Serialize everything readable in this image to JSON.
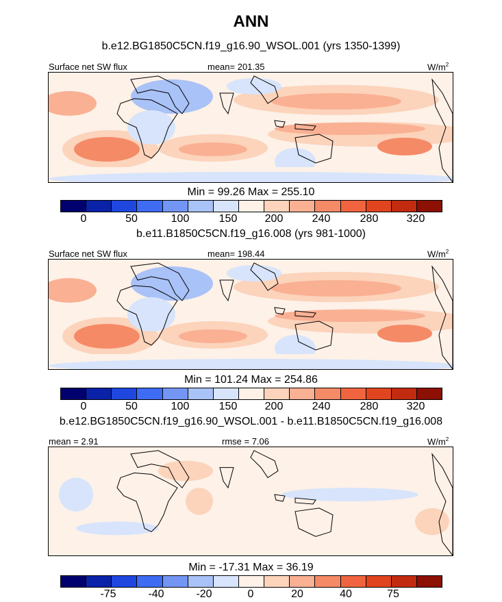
{
  "title": "ANN",
  "panels": [
    {
      "subtitle": "b.e12.BG1850C5CN.f19_g16.90_WSOL.001 (yrs 1350-1399)",
      "left_label": "Surface net SW flux",
      "center_label": "mean= 201.35",
      "units": "W/m",
      "units_sup": "2",
      "minmax": "Min =  99.26 Max = 255.10",
      "colorbar_ticks": [
        "0",
        "50",
        "100",
        "150",
        "200",
        "240",
        "280",
        "320"
      ]
    },
    {
      "subtitle": "b.e11.B1850C5CN.f19_g16.008 (yrs 981-1000)",
      "left_label": "Surface net SW flux",
      "center_label": "mean= 198.44",
      "units": "W/m",
      "units_sup": "2",
      "minmax": "Min = 101.24 Max = 254.86",
      "colorbar_ticks": [
        "0",
        "50",
        "100",
        "150",
        "200",
        "240",
        "280",
        "320"
      ]
    },
    {
      "subtitle": "b.e12.BG1850C5CN.f19_g16.90_WSOL.001 - b.e11.B1850C5CN.f19_g16.008",
      "left_label": "mean =   2.91",
      "center_label": "rmse =   7.06",
      "units": "W/m",
      "units_sup": "2",
      "minmax": "Min = -17.31 Max =  36.19",
      "colorbar_ticks": [
        "-75",
        "-40",
        "-20",
        "0",
        "20",
        "40",
        "75"
      ]
    }
  ],
  "colors": {
    "cmap": [
      "#00006e",
      "#0a22a8",
      "#1f47e0",
      "#3e6cf2",
      "#7396f5",
      "#a9c2f7",
      "#d7e4fb",
      "#fdf1e8",
      "#fcd3bb",
      "#f9b093",
      "#f58a67",
      "#f06540",
      "#e0451f",
      "#c22b10",
      "#8c1004"
    ],
    "land_stroke": "#000000"
  },
  "chart_data": [
    {
      "type": "heatmap",
      "title": "ANN",
      "subtitle": "b.e12.BG1850C5CN.f19_g16.90_WSOL.001 (yrs 1350-1399)",
      "variable": "Surface net SW flux",
      "units": "W/m2",
      "mean": 201.35,
      "min": 99.26,
      "max": 255.1,
      "colorbar_ticks": [
        0,
        50,
        100,
        150,
        200,
        240,
        280,
        320
      ]
    },
    {
      "type": "heatmap",
      "subtitle": "b.e11.B1850C5CN.f19_g16.008 (yrs 981-1000)",
      "variable": "Surface net SW flux",
      "units": "W/m2",
      "mean": 198.44,
      "min": 101.24,
      "max": 254.86,
      "colorbar_ticks": [
        0,
        50,
        100,
        150,
        200,
        240,
        280,
        320
      ]
    },
    {
      "type": "heatmap",
      "subtitle": "b.e12.BG1850C5CN.f19_g16.90_WSOL.001 - b.e11.B1850C5CN.f19_g16.008",
      "units": "W/m2",
      "mean": 2.91,
      "rmse": 7.06,
      "min": -17.31,
      "max": 36.19,
      "colorbar_ticks": [
        -75,
        -40,
        -20,
        0,
        20,
        40,
        75
      ]
    }
  ]
}
